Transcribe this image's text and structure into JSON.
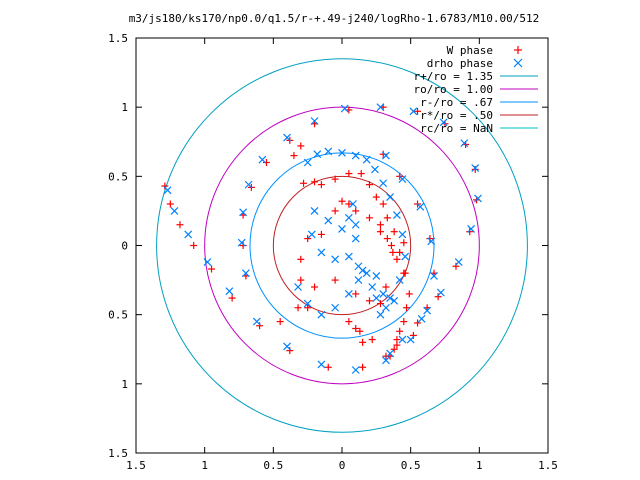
{
  "chart_data": {
    "type": "scatter",
    "title": "m3/js180/ks170/np0.0/q1.5/r-+.49-j240/logRho-1.6783/M10.00/512",
    "xlabel": "",
    "ylabel": "",
    "xlim": [
      -1.5,
      1.5
    ],
    "ylim": [
      -1.5,
      1.5
    ],
    "x_ticks": [
      {
        "value": -1.5,
        "label": "1.5"
      },
      {
        "value": -1.0,
        "label": "1"
      },
      {
        "value": -0.5,
        "label": "0.5"
      },
      {
        "value": 0,
        "label": "0"
      },
      {
        "value": 0.5,
        "label": "0.5"
      },
      {
        "value": 1.0,
        "label": "1"
      },
      {
        "value": 1.5,
        "label": "1.5"
      }
    ],
    "y_ticks": [
      {
        "value": 1.5,
        "label": "1.5"
      },
      {
        "value": 1.0,
        "label": "1"
      },
      {
        "value": 0.5,
        "label": "0.5"
      },
      {
        "value": 0,
        "label": "0"
      },
      {
        "value": -0.5,
        "label": "0.5"
      },
      {
        "value": -1.0,
        "label": "1"
      },
      {
        "value": -1.5,
        "label": "1.5"
      }
    ],
    "grid": false,
    "legend_position": "top-right",
    "series": [
      {
        "name": "W phase",
        "kind": "points",
        "marker": "plus",
        "color": "#ff0000",
        "x": [
          -1.29,
          -1.25,
          -1.18,
          -1.08,
          -0.95,
          -0.8,
          -0.6,
          -0.38,
          -0.1,
          0.15,
          0.35,
          0.52,
          0.62,
          0.67,
          0.64,
          0.55,
          0.42,
          0.3,
          -0.7,
          -0.72,
          -0.72,
          -0.66,
          -0.55,
          -0.38,
          -0.2,
          0.05,
          0.3,
          0.55,
          0.75,
          0.9,
          0.97,
          0.98,
          0.93,
          0.83,
          0.7,
          0.55,
          0.4,
          0.32,
          -0.35,
          -0.3,
          -0.28,
          -0.2,
          -0.15,
          -0.05,
          0.05,
          0.14,
          0.2,
          0.25,
          0.3,
          0.33,
          0.38,
          0.42,
          0.46,
          0.49,
          0.47,
          0.45,
          0.42,
          0.4,
          0.38,
          -0.45,
          -0.32,
          -0.2,
          -0.05,
          0.1,
          0.2,
          0.28,
          0.32,
          -0.25,
          -0.3,
          -0.3,
          -0.25,
          -0.15,
          -0.05,
          0.0,
          0.05,
          0.1,
          0.2,
          0.28,
          0.33,
          0.37,
          0.4,
          0.45,
          0.05,
          0.13,
          0.22,
          0.15,
          0.1,
          0.28,
          0.36,
          0.45
        ],
        "y": [
          0.43,
          0.3,
          0.15,
          0.0,
          -0.17,
          -0.38,
          -0.58,
          -0.76,
          -0.88,
          -0.88,
          -0.8,
          -0.65,
          -0.45,
          -0.2,
          0.05,
          0.3,
          0.5,
          0.66,
          -0.22,
          0.0,
          0.22,
          0.42,
          0.6,
          0.76,
          0.88,
          0.98,
          1.0,
          0.97,
          0.88,
          0.73,
          0.55,
          0.33,
          0.1,
          -0.15,
          -0.37,
          -0.56,
          -0.72,
          -0.8,
          0.65,
          0.72,
          0.45,
          0.46,
          0.44,
          0.48,
          0.52,
          0.52,
          0.44,
          0.35,
          0.3,
          0.2,
          0.1,
          -0.05,
          -0.2,
          -0.35,
          -0.45,
          -0.55,
          -0.62,
          -0.68,
          -0.75,
          -0.55,
          -0.45,
          -0.3,
          -0.25,
          -0.35,
          -0.4,
          -0.42,
          -0.3,
          -0.45,
          -0.25,
          -0.1,
          0.05,
          0.08,
          0.25,
          0.32,
          0.3,
          0.25,
          0.2,
          0.15,
          0.05,
          -0.05,
          -0.1,
          -0.2,
          -0.55,
          -0.62,
          -0.68,
          -0.7,
          -0.6,
          0.1,
          0.0,
          0.02
        ]
      },
      {
        "name": "drho phase",
        "kind": "points",
        "marker": "cross",
        "color": "#0080ff",
        "x": [
          -1.27,
          -1.22,
          -1.12,
          -0.98,
          -0.82,
          -0.62,
          -0.4,
          -0.15,
          0.1,
          0.32,
          0.5,
          0.62,
          0.67,
          0.65,
          0.57,
          0.44,
          0.32,
          -0.7,
          -0.73,
          -0.72,
          -0.68,
          -0.58,
          -0.4,
          -0.2,
          0.02,
          0.28,
          0.52,
          0.74,
          0.89,
          0.97,
          0.99,
          0.94,
          0.85,
          0.72,
          0.58,
          0.44,
          0.35,
          -0.25,
          -0.18,
          -0.1,
          0.0,
          0.1,
          0.18,
          0.24,
          0.3,
          0.35,
          0.4,
          0.44,
          0.46,
          0.42,
          0.38,
          -0.22,
          -0.15,
          -0.05,
          0.05,
          0.12,
          0.18,
          0.22,
          0.25,
          -0.2,
          -0.1,
          0.0,
          0.05,
          0.08,
          0.1,
          0.1,
          -0.32,
          -0.25,
          -0.15,
          -0.05,
          0.05,
          0.12,
          0.15,
          0.25,
          0.3,
          0.32,
          0.35,
          0.28
        ],
        "y": [
          0.4,
          0.25,
          0.08,
          -0.12,
          -0.33,
          -0.55,
          -0.73,
          -0.86,
          -0.9,
          -0.83,
          -0.68,
          -0.47,
          -0.22,
          0.03,
          0.28,
          0.48,
          0.65,
          -0.2,
          0.02,
          0.24,
          0.44,
          0.62,
          0.78,
          0.9,
          0.99,
          1.0,
          0.97,
          0.89,
          0.74,
          0.56,
          0.34,
          0.12,
          -0.12,
          -0.34,
          -0.53,
          -0.68,
          -0.78,
          0.6,
          0.66,
          0.68,
          0.67,
          0.65,
          0.62,
          0.55,
          0.45,
          0.35,
          0.22,
          0.08,
          -0.08,
          -0.25,
          -0.4,
          0.08,
          -0.05,
          -0.1,
          -0.08,
          -0.15,
          -0.2,
          -0.3,
          -0.38,
          0.25,
          0.18,
          0.12,
          0.2,
          0.3,
          0.15,
          0.05,
          -0.3,
          -0.42,
          -0.5,
          -0.45,
          -0.35,
          -0.25,
          -0.18,
          -0.22,
          -0.35,
          -0.45,
          -0.38,
          -0.5
        ]
      },
      {
        "name": "r+/ro = 1.35",
        "kind": "circle",
        "radius": 1.35,
        "color": "#00a0c0"
      },
      {
        "name": "ro/ro = 1.00",
        "kind": "circle",
        "radius": 1.0,
        "color": "#c000c0"
      },
      {
        "name": "r-/ro = .67",
        "kind": "circle",
        "radius": 0.67,
        "color": "#0090ff"
      },
      {
        "name": "r*/ro = .50",
        "kind": "circle",
        "radius": 0.5,
        "color": "#c02020"
      },
      {
        "name": "rc/ro = NaN",
        "kind": "circle",
        "radius": null,
        "color": "#00c0c0"
      }
    ]
  }
}
